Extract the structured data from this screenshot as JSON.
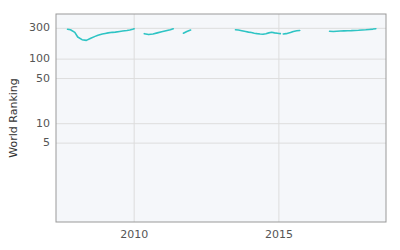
{
  "chart_data": {
    "type": "line",
    "ylabel": "World Ranking",
    "x": [
      2007.7,
      2007.8,
      2007.95,
      2008.05,
      2008.2,
      2008.35,
      2008.5,
      2008.65,
      2008.75,
      2008.9,
      2009.0,
      2009.1,
      2009.25,
      2009.35,
      2009.5,
      2009.6,
      2009.75,
      2009.85,
      2009.95,
      2010.0,
      null,
      2010.35,
      2010.5,
      2010.65,
      2010.8,
      2010.95,
      2011.1,
      2011.25,
      2011.35,
      null,
      2011.7,
      2011.82,
      2011.95,
      null,
      2013.5,
      2013.6,
      2013.72,
      2013.85,
      2013.95,
      2014.05,
      2014.15,
      2014.25,
      2014.35,
      2014.45,
      2014.55,
      2014.65,
      2014.75,
      2014.85,
      2014.95,
      2015.0,
      2015.05,
      null,
      2015.15,
      2015.25,
      2015.4,
      2015.5,
      2015.62,
      2015.72,
      null,
      2016.75,
      2016.88,
      2017.0,
      2017.12,
      2017.25,
      2017.38,
      2017.5,
      2017.62,
      2017.75,
      2017.88,
      2018.0,
      2018.12,
      2018.25,
      2018.35
    ],
    "values": [
      290,
      285,
      260,
      220,
      200,
      195,
      210,
      225,
      235,
      245,
      250,
      255,
      260,
      262,
      268,
      272,
      278,
      283,
      290,
      295,
      null,
      248,
      240,
      245,
      255,
      265,
      275,
      285,
      295,
      null,
      252,
      268,
      282,
      null,
      285,
      282,
      275,
      268,
      262,
      258,
      252,
      248,
      245,
      243,
      248,
      255,
      260,
      255,
      252,
      250,
      248,
      null,
      245,
      248,
      258,
      268,
      275,
      278,
      null,
      270,
      268,
      270,
      272,
      274,
      275,
      276,
      278,
      280,
      283,
      285,
      288,
      292,
      296
    ],
    "color": "#2EC4C4",
    "xlim": [
      2007.3,
      2018.7
    ],
    "ylim": [
      0.3,
      500
    ],
    "xticks": [
      2010,
      2015
    ],
    "yticks": [
      5,
      10,
      50,
      100,
      300
    ],
    "log": "y",
    "grid": true
  }
}
